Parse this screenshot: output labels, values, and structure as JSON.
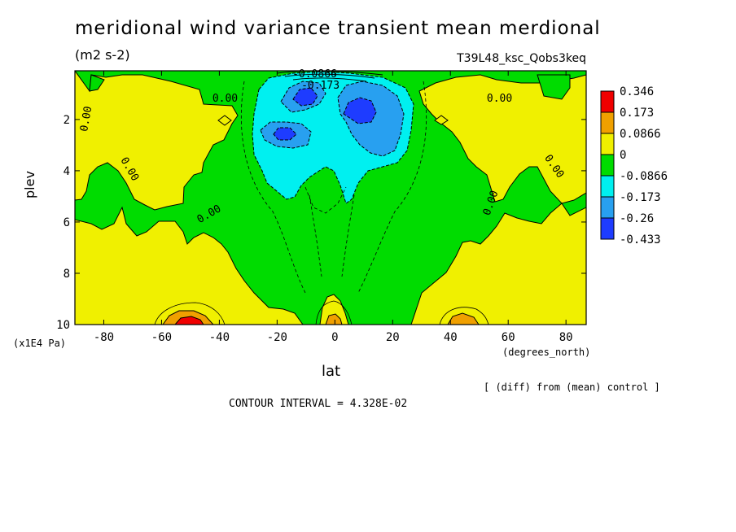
{
  "chart_data": {
    "type": "heatmap",
    "title": "meridional wind variance transient mean merdional",
    "subtitle": "(m2 s-2)",
    "run_label": "T39L48_ksc_Qobs3keq",
    "xlabel": "lat",
    "x_units": "(degrees_north)",
    "ylabel": "plev",
    "y_units": "(x1E4 Pa)",
    "xlim": [
      -90,
      87
    ],
    "ylim": [
      10,
      0.1
    ],
    "x_ticks": [
      -80,
      -60,
      -40,
      -20,
      0,
      20,
      40,
      60,
      80
    ],
    "x_tick_labels": [
      "-80",
      "-60",
      "-40",
      "-20",
      "0",
      "20",
      "40",
      "60",
      "80"
    ],
    "y_ticks": [
      2,
      4,
      6,
      8,
      10
    ],
    "y_tick_labels": [
      "2",
      "4",
      "6",
      "8",
      "10"
    ],
    "contour_labels": [
      {
        "text": "0.00",
        "lat": -38,
        "plev": 1.3
      },
      {
        "text": "0.00",
        "lat": 57,
        "plev": 1.3
      },
      {
        "text": "0.00",
        "lat": -85,
        "plev": 2.0
      },
      {
        "text": "0.00",
        "lat": -72,
        "plev": 4.0
      },
      {
        "text": "0.00",
        "lat": -43,
        "plev": 5.8
      },
      {
        "text": "0.00",
        "lat": 75,
        "plev": 3.9
      },
      {
        "text": "0.00",
        "lat": 55,
        "plev": 5.3
      },
      {
        "text": "-0.0866",
        "lat": -7,
        "plev": 0.35
      },
      {
        "text": "-0.173",
        "lat": -5,
        "plev": 0.8
      }
    ],
    "colorbar": {
      "labels": [
        "0.346",
        "0.173",
        "0.0866",
        "0",
        "-0.0866",
        "-0.173",
        "-0.26",
        "-0.433"
      ],
      "colors": [
        "#f00000",
        "#f0a000",
        "#f0f000",
        "#00dc00",
        "#00f0f0",
        "#28a0f0",
        "#1e3cff"
      ]
    },
    "contour_interval_text": "CONTOUR INTERVAL = 4.328E-02",
    "footnote": "[ (diff) from (mean) control ]"
  }
}
